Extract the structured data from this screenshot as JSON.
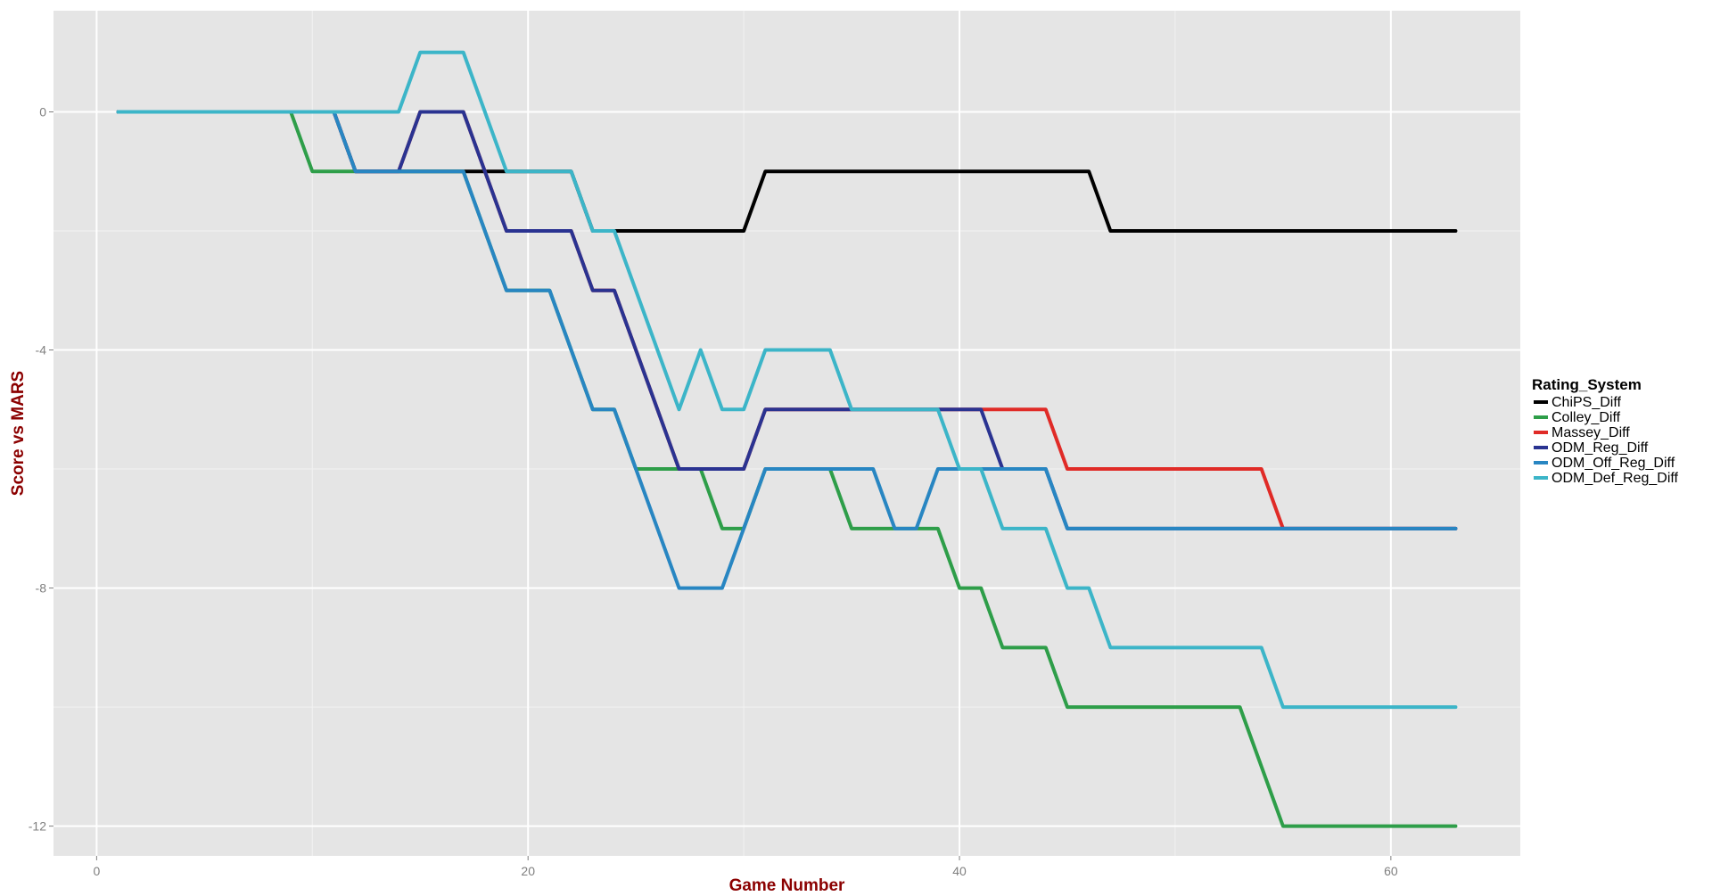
{
  "chart_data": {
    "type": "line",
    "title": "",
    "xlabel": "Game Number",
    "ylabel": "Score vs MARS",
    "xlim": [
      -2,
      66
    ],
    "ylim": [
      -12.5,
      1.7
    ],
    "x_ticks": [
      0,
      20,
      40,
      60
    ],
    "y_ticks": [
      0,
      -4,
      -8,
      -12
    ],
    "x_tick_labels": [
      "0",
      "20",
      "40",
      "60"
    ],
    "y_tick_labels": [
      "0",
      "-4",
      "-8",
      "-12"
    ],
    "grid": true,
    "background": "#e5e5e5",
    "legend": {
      "title": "Rating_System",
      "position": "right"
    },
    "x": [
      1,
      2,
      3,
      4,
      5,
      6,
      7,
      8,
      9,
      10,
      11,
      12,
      13,
      14,
      15,
      16,
      17,
      18,
      19,
      20,
      21,
      22,
      23,
      24,
      25,
      26,
      27,
      28,
      29,
      30,
      31,
      32,
      33,
      34,
      35,
      36,
      37,
      38,
      39,
      40,
      41,
      42,
      43,
      44,
      45,
      46,
      47,
      48,
      49,
      50,
      51,
      52,
      53,
      54,
      55,
      56,
      57,
      58,
      59,
      60,
      61,
      62,
      63
    ],
    "series": [
      {
        "name": "ChiPS_Diff",
        "color": "#000000",
        "values": [
          0,
          0,
          0,
          0,
          0,
          0,
          0,
          0,
          0,
          0,
          0,
          -1,
          -1,
          -1,
          -1,
          -1,
          -1,
          -1,
          -1,
          -1,
          -1,
          -1,
          -2,
          -2,
          -2,
          -2,
          -2,
          -2,
          -2,
          -2,
          -1,
          -1,
          -1,
          -1,
          -1,
          -1,
          -1,
          -1,
          -1,
          -1,
          -1,
          -1,
          -1,
          -1,
          -1,
          -1,
          -2,
          -2,
          -2,
          -2,
          -2,
          -2,
          -2,
          -2,
          -2,
          -2,
          -2,
          -2,
          -2,
          -2,
          -2,
          -2,
          -2
        ]
      },
      {
        "name": "Colley_Diff",
        "color": "#2e9e49",
        "values": [
          0,
          0,
          0,
          0,
          0,
          0,
          0,
          0,
          0,
          -1,
          -1,
          -1,
          -1,
          -1,
          -1,
          -1,
          -1,
          -2,
          -3,
          -3,
          -3,
          -4,
          -5,
          -5,
          -6,
          -6,
          -6,
          -6,
          -7,
          -7,
          -6,
          -6,
          -6,
          -6,
          -7,
          -7,
          -7,
          -7,
          -7,
          -8,
          -8,
          -9,
          -9,
          -9,
          -10,
          -10,
          -10,
          -10,
          -10,
          -10,
          -10,
          -10,
          -10,
          -11,
          -12,
          -12,
          -12,
          -12,
          -12,
          -12,
          -12,
          -12,
          -12
        ]
      },
      {
        "name": "Massey_Diff",
        "color": "#e02b27",
        "values": [
          0,
          0,
          0,
          0,
          0,
          0,
          0,
          0,
          0,
          0,
          0,
          -1,
          -1,
          -1,
          0,
          0,
          0,
          -1,
          -2,
          -2,
          -2,
          -2,
          -3,
          -3,
          -4,
          -5,
          -6,
          -6,
          -6,
          -6,
          -5,
          -5,
          -5,
          -5,
          -5,
          -5,
          -5,
          -5,
          -5,
          -5,
          -5,
          -5,
          -5,
          -5,
          -6,
          -6,
          -6,
          -6,
          -6,
          -6,
          -6,
          -6,
          -6,
          -6,
          -7,
          -7,
          -7,
          -7,
          -7,
          -7,
          -7,
          -7,
          -7
        ]
      },
      {
        "name": "ODM_Reg_Diff",
        "color": "#2a3391",
        "values": [
          0,
          0,
          0,
          0,
          0,
          0,
          0,
          0,
          0,
          0,
          0,
          -1,
          -1,
          -1,
          0,
          0,
          0,
          -1,
          -2,
          -2,
          -2,
          -2,
          -3,
          -3,
          -4,
          -5,
          -6,
          -6,
          -6,
          -6,
          -5,
          -5,
          -5,
          -5,
          -5,
          -5,
          -5,
          -5,
          -5,
          -5,
          -5,
          -6,
          -6,
          -6,
          -7,
          -7,
          -7,
          -7,
          -7,
          -7,
          -7,
          -7,
          -7,
          -7,
          -7,
          -7,
          -7,
          -7,
          -7,
          -7,
          -7,
          -7,
          -7
        ]
      },
      {
        "name": "ODM_Off_Reg_Diff",
        "color": "#2886c2",
        "values": [
          0,
          0,
          0,
          0,
          0,
          0,
          0,
          0,
          0,
          0,
          0,
          -1,
          -1,
          -1,
          -1,
          -1,
          -1,
          -2,
          -3,
          -3,
          -3,
          -4,
          -5,
          -5,
          -6,
          -7,
          -8,
          -8,
          -8,
          -7,
          -6,
          -6,
          -6,
          -6,
          -6,
          -6,
          -7,
          -7,
          -6,
          -6,
          -6,
          -6,
          -6,
          -6,
          -7,
          -7,
          -7,
          -7,
          -7,
          -7,
          -7,
          -7,
          -7,
          -7,
          -7,
          -7,
          -7,
          -7,
          -7,
          -7,
          -7,
          -7,
          -7
        ]
      },
      {
        "name": "ODM_Def_Reg_Diff",
        "color": "#3cb5c8",
        "values": [
          0,
          0,
          0,
          0,
          0,
          0,
          0,
          0,
          0,
          0,
          0,
          0,
          0,
          0,
          1,
          1,
          1,
          0,
          -1,
          -1,
          -1,
          -1,
          -2,
          -2,
          -3,
          -4,
          -5,
          -4,
          -5,
          -5,
          -4,
          -4,
          -4,
          -4,
          -5,
          -5,
          -5,
          -5,
          -5,
          -6,
          -6,
          -7,
          -7,
          -7,
          -8,
          -8,
          -9,
          -9,
          -9,
          -9,
          -9,
          -9,
          -9,
          -9,
          -10,
          -10,
          -10,
          -10,
          -10,
          -10,
          -10,
          -10,
          -10
        ]
      }
    ]
  }
}
